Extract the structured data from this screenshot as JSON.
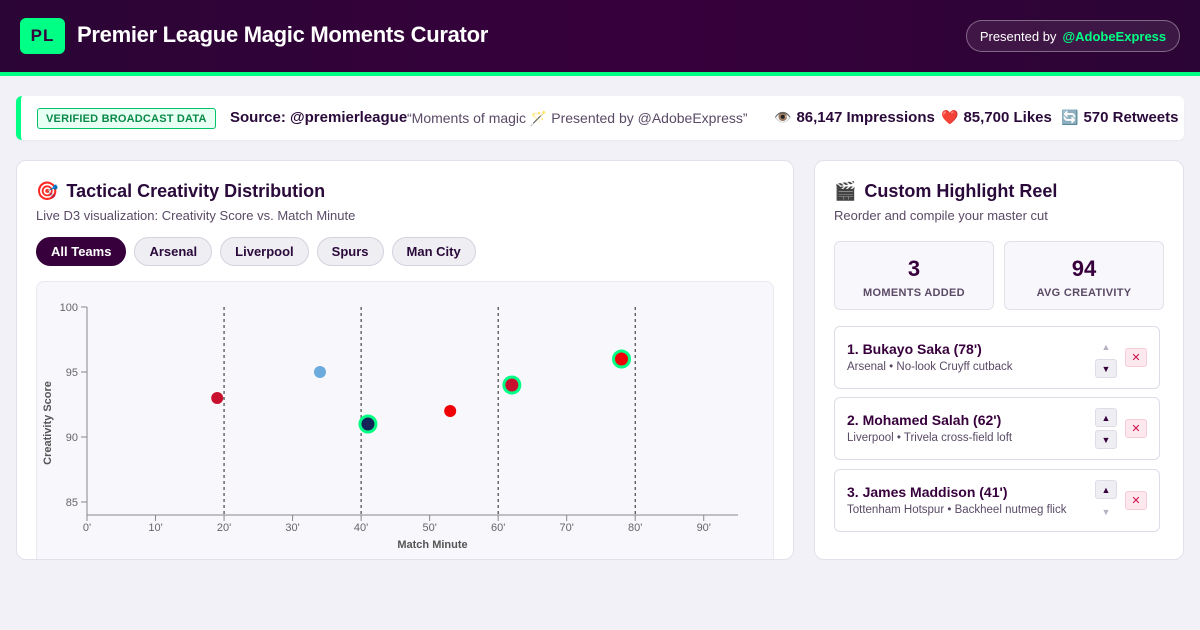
{
  "header": {
    "logo": "PL",
    "title": "Premier League Magic Moments Curator",
    "presented_prefix": "Presented by",
    "presented_handle": "@AdobeExpress"
  },
  "banner": {
    "badge": "VERIFIED BROADCAST DATA",
    "source": "Source: @premierleague",
    "quote": "“Moments of magic 🪄 Presented by @AdobeExpress”",
    "stats": [
      {
        "icon": "eye-icon",
        "glyph": "👁️",
        "label": "86,147 Impressions"
      },
      {
        "icon": "heart-icon",
        "glyph": "❤️",
        "label": "85,700 Likes"
      },
      {
        "icon": "retweet-icon",
        "glyph": "🔄",
        "label": "570 Retweets"
      }
    ]
  },
  "chart_panel": {
    "icon": "target-icon",
    "icon_glyph": "🎯",
    "title": "Tactical Creativity Distribution",
    "subtitle": "Live D3 visualization: Creativity Score vs. Match Minute",
    "filters": [
      "All Teams",
      "Arsenal",
      "Liverpool",
      "Spurs",
      "Man City"
    ],
    "active_filter": "All Teams"
  },
  "chart_data": {
    "type": "scatter",
    "xlabel": "Match Minute",
    "ylabel": "Creativity Score",
    "xlim": [
      0,
      95
    ],
    "ylim": [
      84,
      100
    ],
    "x_ticks": [
      0,
      10,
      20,
      30,
      40,
      50,
      60,
      70,
      80,
      90
    ],
    "x_tick_labels": [
      "0'",
      "10'",
      "20'",
      "30'",
      "40'",
      "50'",
      "60'",
      "70'",
      "80'",
      "90'"
    ],
    "y_ticks": [
      85,
      90,
      95,
      100
    ],
    "y_tick_labels": [
      "85",
      "90",
      "95",
      "100"
    ],
    "reference_lines_x": [
      20,
      40,
      60,
      80
    ],
    "points": [
      {
        "x": 19,
        "y": 93,
        "color": "#c8102e",
        "selected": false
      },
      {
        "x": 34,
        "y": 95,
        "color": "#6cabdd",
        "selected": false
      },
      {
        "x": 41,
        "y": 91,
        "color": "#132257",
        "selected": true
      },
      {
        "x": 53,
        "y": 92,
        "color": "#ef0107",
        "selected": false
      },
      {
        "x": 62,
        "y": 94,
        "color": "#c8102e",
        "selected": true
      },
      {
        "x": 78,
        "y": 96,
        "color": "#ef0107",
        "selected": true
      }
    ]
  },
  "reel_panel": {
    "icon": "clapperboard-icon",
    "icon_glyph": "🎬",
    "title": "Custom Highlight Reel",
    "subtitle": "Reorder and compile your master cut",
    "kpis": [
      {
        "value": "3",
        "label": "MOMENTS ADDED"
      },
      {
        "value": "94",
        "label": "AVG CREATIVITY"
      }
    ],
    "items": [
      {
        "name": "1. Bukayo Saka (78')",
        "desc": "Arsenal • No-look Cruyff cutback",
        "up_enabled": false,
        "down_enabled": true
      },
      {
        "name": "2. Mohamed Salah (62')",
        "desc": "Liverpool • Trivela cross-field loft",
        "up_enabled": true,
        "down_enabled": true
      },
      {
        "name": "3. James Maddison (41')",
        "desc": "Tottenham Hotspur • Backheel nutmeg flick",
        "up_enabled": true,
        "down_enabled": false
      }
    ]
  },
  "colors": {
    "brand": "#37003c",
    "accent": "#00ff85",
    "remove": "#d0104c"
  }
}
